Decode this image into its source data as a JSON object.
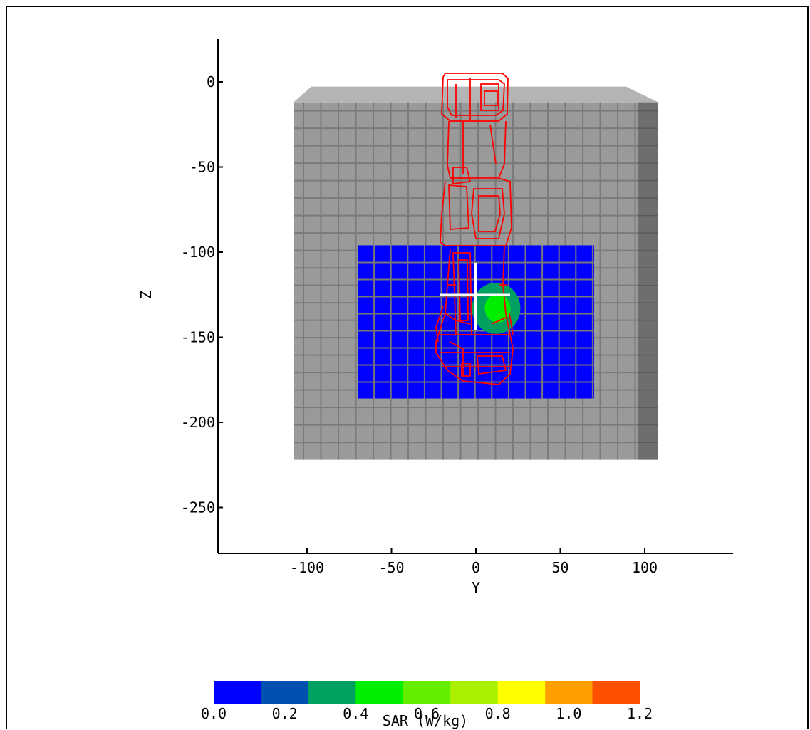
{
  "chart_data": {
    "type": "heatmap",
    "xlabel": "Y",
    "ylabel": "Z",
    "xticks": [
      -100,
      -50,
      0,
      50,
      100
    ],
    "yticks": [
      0,
      -50,
      -100,
      -150,
      -200,
      -250
    ],
    "xlim": [
      -150,
      150
    ],
    "ylim": [
      -275,
      25
    ],
    "phantom_extent": {
      "y": [
        -108,
        108
      ],
      "z": [
        -222,
        -12
      ]
    },
    "scan_area": {
      "y": [
        -70,
        70
      ],
      "z": [
        -96,
        -186
      ]
    },
    "measurement_point": {
      "y": 0,
      "z": -125
    },
    "hotspot": {
      "y": 12,
      "z": -133,
      "peak_sar": 0.45
    },
    "colorbar": {
      "title": "SAR (W/kg)",
      "ticks": [
        "0.0",
        "0.2",
        "0.4",
        "0.6",
        "0.8",
        "1.0",
        "1.2"
      ],
      "range": [
        0.0,
        1.2
      ],
      "colors": [
        "#0000ff",
        "#0050b0",
        "#00a060",
        "#00ee00",
        "#66ee00",
        "#aaf000",
        "#ffff00",
        "#ffa000",
        "#ff5000"
      ]
    },
    "colors": {
      "phantom": "#9a9a9a",
      "phantom_grid": "#7a7a7a",
      "scan_area": "#0000ff",
      "device_outline": "#ff0000",
      "crosshair": "#ffffff"
    }
  }
}
